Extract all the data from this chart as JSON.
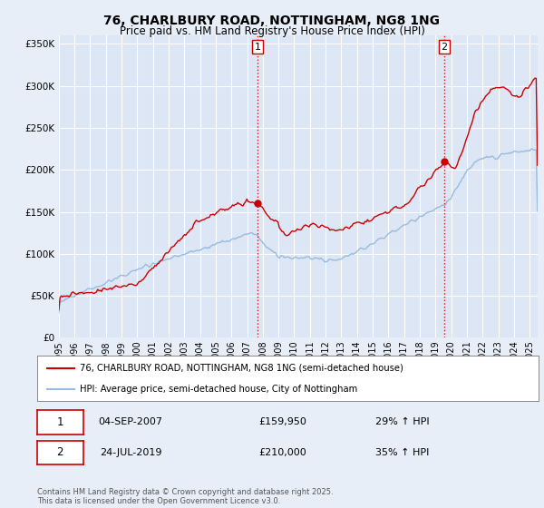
{
  "title": "76, CHARLBURY ROAD, NOTTINGHAM, NG8 1NG",
  "subtitle": "Price paid vs. HM Land Registry's House Price Index (HPI)",
  "title_fontsize": 10,
  "subtitle_fontsize": 8.5,
  "background_color": "#e8eef8",
  "plot_bg_color": "#dce6f5",
  "grid_color": "#ffffff",
  "red_color": "#cc0000",
  "blue_color": "#99bbdd",
  "ylim": [
    0,
    360000
  ],
  "yticks": [
    0,
    50000,
    100000,
    150000,
    200000,
    250000,
    300000,
    350000
  ],
  "ytick_labels": [
    "£0",
    "£50K",
    "£100K",
    "£150K",
    "£200K",
    "£250K",
    "£300K",
    "£350K"
  ],
  "xmin": 1995,
  "xmax": 2025.5,
  "marker1_x": 2007.67,
  "marker1_y": 159950,
  "marker2_x": 2019.56,
  "marker2_y": 210000,
  "vline1_x": 2007.67,
  "vline2_x": 2019.56,
  "legend_line1": "76, CHARLBURY ROAD, NOTTINGHAM, NG8 1NG (semi-detached house)",
  "legend_line2": "HPI: Average price, semi-detached house, City of Nottingham",
  "table_row1": [
    "1",
    "04-SEP-2007",
    "£159,950",
    "29% ↑ HPI"
  ],
  "table_row2": [
    "2",
    "24-JUL-2019",
    "£210,000",
    "35% ↑ HPI"
  ],
  "footer": "Contains HM Land Registry data © Crown copyright and database right 2025.\nThis data is licensed under the Open Government Licence v3.0."
}
